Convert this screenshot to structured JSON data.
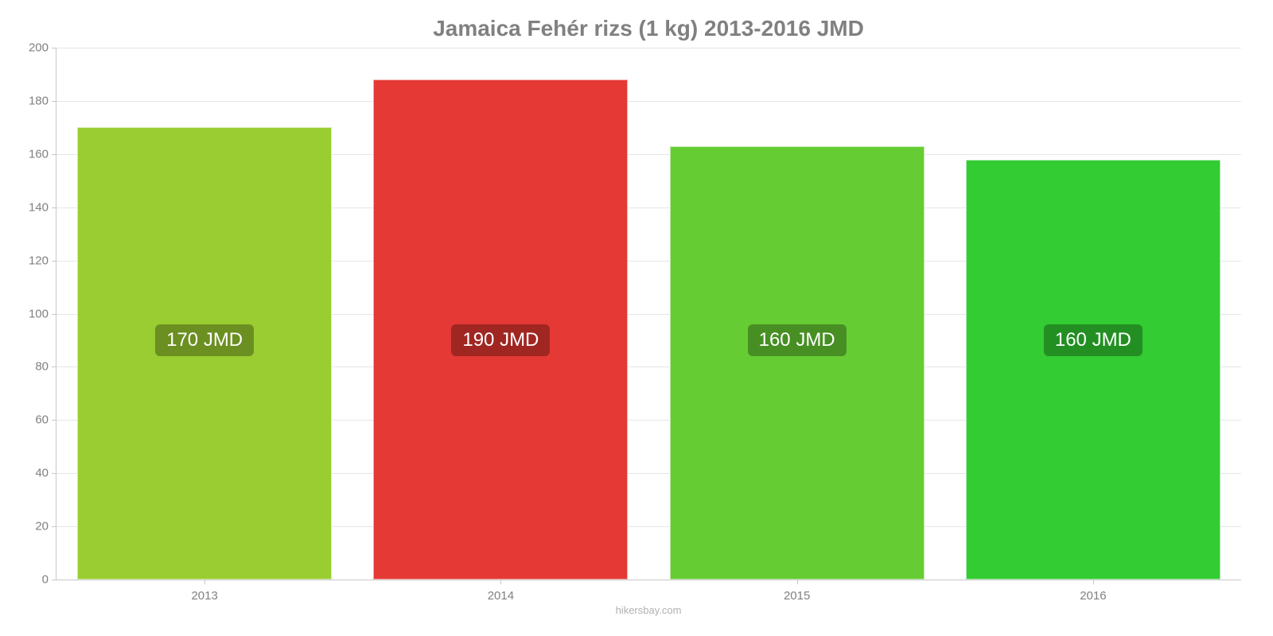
{
  "chart": {
    "type": "bar",
    "title": "Jamaica Fehér rizs (1 kg) 2013-2016 JMD",
    "title_fontsize": 28,
    "title_color": "#808080",
    "background_color": "#ffffff",
    "grid_color": "#e6e6e6",
    "axis_color": "#c8c8c8",
    "tick_label_color": "#808080",
    "tick_label_fontsize": 15,
    "y": {
      "min": 0,
      "max": 200,
      "step": 20,
      "ticks": [
        {
          "v": 0,
          "label": "0"
        },
        {
          "v": 20,
          "label": "20"
        },
        {
          "v": 40,
          "label": "40"
        },
        {
          "v": 60,
          "label": "60"
        },
        {
          "v": 80,
          "label": "80"
        },
        {
          "v": 100,
          "label": "100"
        },
        {
          "v": 120,
          "label": "120"
        },
        {
          "v": 140,
          "label": "140"
        },
        {
          "v": 160,
          "label": "160"
        },
        {
          "v": 180,
          "label": "180"
        },
        {
          "v": 200,
          "label": "200"
        }
      ]
    },
    "bar_width_ratio": 0.86,
    "value_badge": {
      "fontsize": 24,
      "text_color": "#ffffff",
      "y_value_center": 90,
      "border_radius": 6
    },
    "bars": [
      {
        "x_label": "2013",
        "value": 170,
        "display": "170 JMD",
        "fill": "#9acd32",
        "badge_bg": "#6b8f21"
      },
      {
        "x_label": "2014",
        "value": 188,
        "display": "190 JMD",
        "fill": "#e53935",
        "badge_bg": "#a02622"
      },
      {
        "x_label": "2015",
        "value": 163,
        "display": "160 JMD",
        "fill": "#66cc33",
        "badge_bg": "#478f23"
      },
      {
        "x_label": "2016",
        "value": 158,
        "display": "160 JMD",
        "fill": "#33cc33",
        "badge_bg": "#238f23"
      }
    ],
    "credit": "hikersbay.com",
    "credit_color": "#b0b0b0",
    "credit_fontsize": 13
  }
}
